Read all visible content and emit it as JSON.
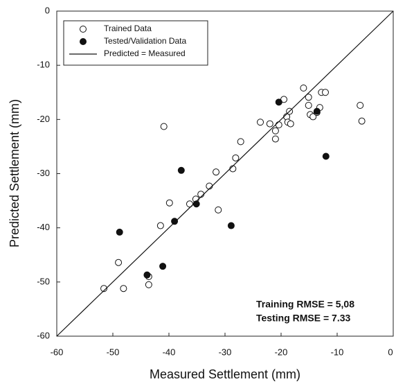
{
  "chart_data": {
    "type": "scatter",
    "xlabel": "Measured Settlement (mm)",
    "ylabel": "Predicted Settlement (mm)",
    "xlim": [
      -60,
      0
    ],
    "ylim": [
      -60,
      0
    ],
    "xticks": [
      -60,
      -50,
      -40,
      -30,
      -20,
      -10,
      0
    ],
    "yticks": [
      0,
      -10,
      -20,
      -30,
      -40,
      -50,
      -60
    ],
    "annotations": [
      "Training RMSE = 5,08",
      "Testing RMSE = 7.33"
    ],
    "series": [
      {
        "name": "Trained Data",
        "type": "scatter",
        "color": "#ffffff",
        "edgecolor": "#111111",
        "x": [
          -40.9,
          -51.6,
          -49.0,
          -48.1,
          -43.6,
          -43.6,
          -41.5,
          -39.9,
          -36.3,
          -35.2,
          -34.3,
          -32.8,
          -31.6,
          -31.2,
          -28.6,
          -28.1,
          -27.2,
          -23.7,
          -22.0,
          -21.0,
          -21.0,
          -20.4,
          -19.5,
          -19.0,
          -18.8,
          -18.5,
          -18.3,
          -16.0,
          -15.1,
          -15.1,
          -14.8,
          -14.3,
          -13.6,
          -13.1,
          -12.8,
          -12.1,
          -5.9,
          -5.6
        ],
        "y": [
          -21.3,
          -51.2,
          -46.4,
          -51.2,
          -50.5,
          -49.0,
          -39.6,
          -35.4,
          -35.6,
          -34.7,
          -33.8,
          -32.3,
          -29.7,
          -36.7,
          -29.1,
          -27.1,
          -24.1,
          -20.5,
          -20.8,
          -22.1,
          -23.6,
          -21.0,
          -16.3,
          -19.5,
          -20.5,
          -18.5,
          -20.8,
          -14.2,
          -17.4,
          -15.9,
          -19.1,
          -19.5,
          -18.7,
          -17.8,
          -15.0,
          -15.0,
          -17.4,
          -20.3
        ]
      },
      {
        "name": "Tested/Validation Data",
        "type": "scatter",
        "color": "#111111",
        "edgecolor": "#111111",
        "x": [
          -48.8,
          -43.9,
          -41.1,
          -39.0,
          -37.8,
          -35.1,
          -28.9,
          -20.4,
          -13.6,
          -12.0
        ],
        "y": [
          -40.8,
          -48.7,
          -47.1,
          -38.8,
          -29.4,
          -35.6,
          -39.6,
          -16.8,
          -18.5,
          -26.8
        ]
      },
      {
        "name": "Predicted = Measured",
        "type": "line",
        "color": "#111111",
        "x": [
          -60,
          0
        ],
        "y": [
          -60,
          0
        ]
      }
    ]
  }
}
